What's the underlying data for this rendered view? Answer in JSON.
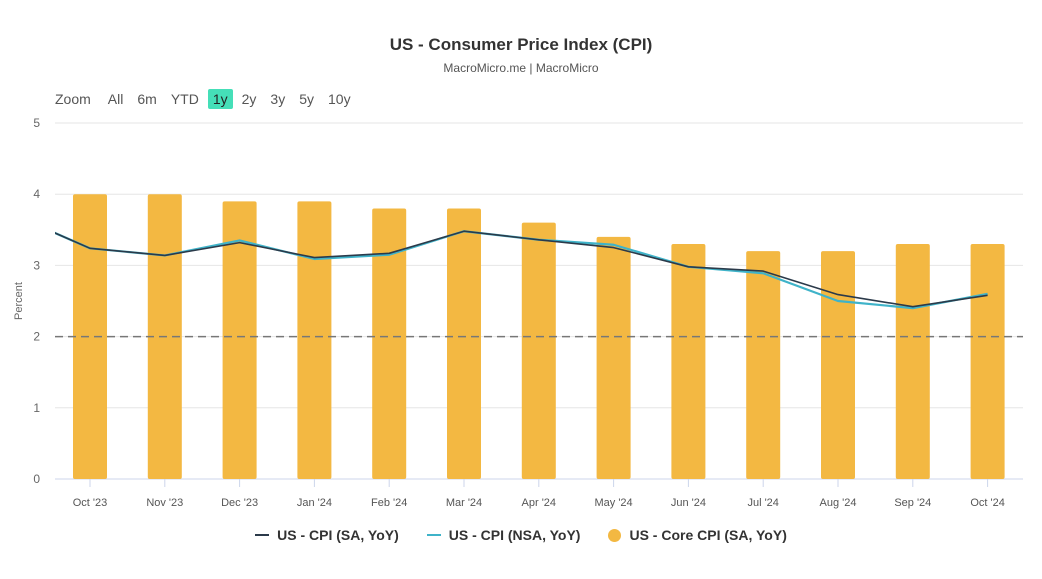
{
  "chart_data": {
    "type": "bar",
    "title": "US - Consumer Price Index (CPI)",
    "subtitle": "MacroMicro.me | MacroMicro",
    "ylabel": "Percent",
    "xlabel": "",
    "ylim": [
      0,
      5
    ],
    "yticks": [
      "0",
      "1",
      "2",
      "3",
      "4",
      "5"
    ],
    "grid": true,
    "reference_line": {
      "value": 2,
      "style": "dashed"
    },
    "categories": [
      "Oct '23",
      "Nov '23",
      "Dec '23",
      "Jan '24",
      "Feb '24",
      "Mar '24",
      "Apr '24",
      "May '24",
      "Jun '24",
      "Jul '24",
      "Aug '24",
      "Sep '24",
      "Oct '24"
    ],
    "lead_in": {
      "x": "Sep '23",
      "sa": 3.7,
      "nsa": 3.7
    },
    "series": [
      {
        "name": "US - CPI (SA, YoY)",
        "type": "line",
        "color": "#2b3a4a",
        "values": [
          3.24,
          3.14,
          3.32,
          3.11,
          3.17,
          3.48,
          3.36,
          3.25,
          2.98,
          2.92,
          2.59,
          2.42,
          2.58
        ]
      },
      {
        "name": "US - CPI (NSA, YoY)",
        "type": "line",
        "color": "#3fb3c9",
        "values": [
          3.24,
          3.14,
          3.35,
          3.09,
          3.15,
          3.48,
          3.36,
          3.29,
          2.98,
          2.89,
          2.5,
          2.4,
          2.6
        ]
      },
      {
        "name": "US - Core CPI (SA, YoY)",
        "type": "bar",
        "color": "#f3b842",
        "values": [
          4.0,
          4.0,
          3.9,
          3.9,
          3.8,
          3.8,
          3.6,
          3.4,
          3.3,
          3.2,
          3.2,
          3.3,
          3.3
        ]
      }
    ],
    "legend_position": "bottom-center"
  },
  "zoom": {
    "label": "Zoom",
    "options": [
      "All",
      "6m",
      "YTD",
      "1y",
      "2y",
      "3y",
      "5y",
      "10y"
    ],
    "selected": "1y"
  }
}
